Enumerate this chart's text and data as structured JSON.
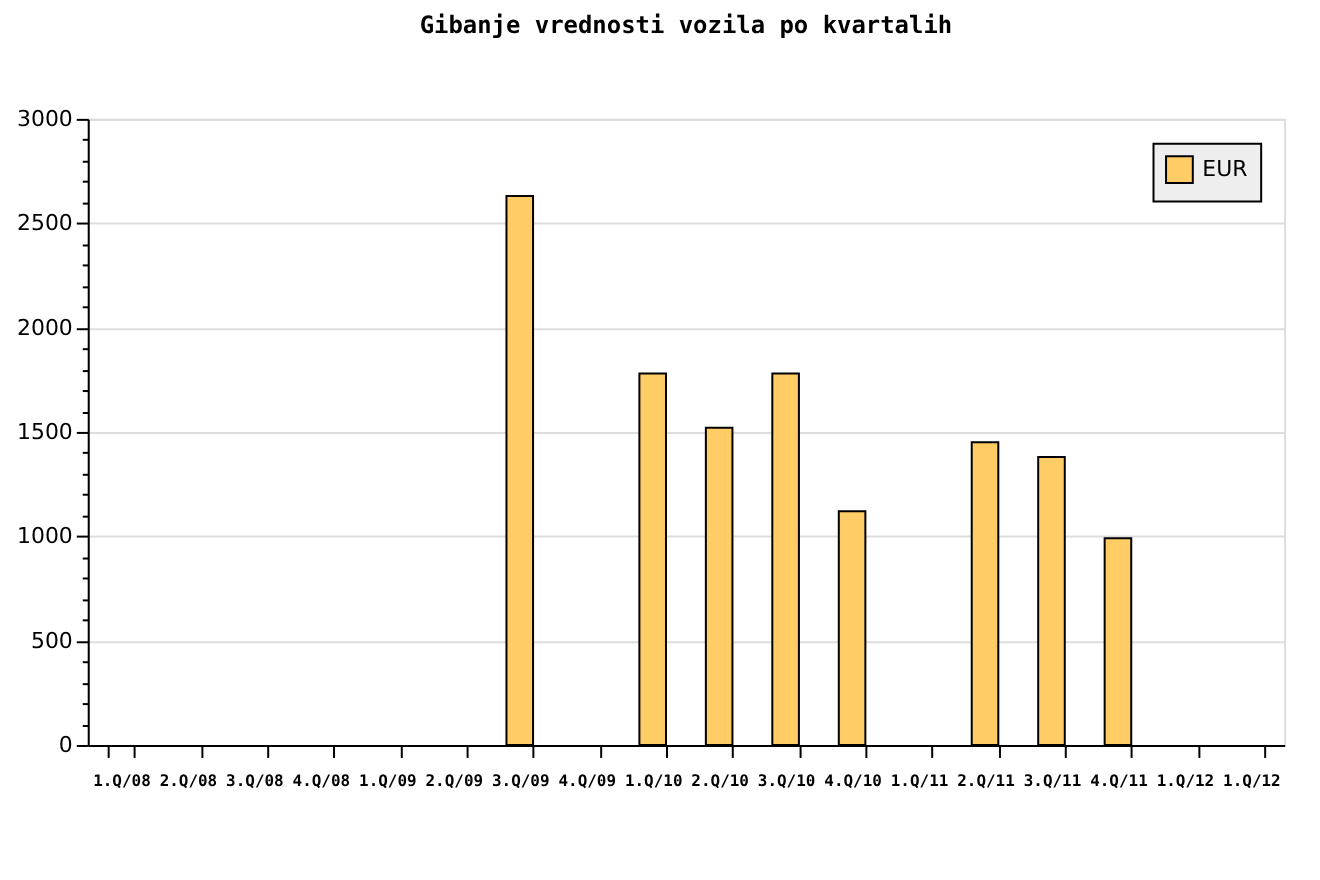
{
  "chart_data": {
    "type": "bar",
    "title": "Gibanje vrednosti vozila po kvartalih",
    "categories": [
      "1.Q/08",
      "2.Q/08",
      "3.Q/08",
      "4.Q/08",
      "1.Q/09",
      "2.Q/09",
      "3.Q/09",
      "4.Q/09",
      "1.Q/10",
      "2.Q/10",
      "3.Q/10",
      "4.Q/10",
      "1.Q/11",
      "2.Q/11",
      "3.Q/11",
      "4.Q/11",
      "1.Q/12",
      "1.Q/12"
    ],
    "series": [
      {
        "name": "EUR",
        "color": "#ffcc66",
        "values": [
          null,
          null,
          null,
          null,
          null,
          null,
          2630,
          null,
          1780,
          1520,
          1780,
          1120,
          null,
          1450,
          1380,
          990,
          null,
          null
        ]
      }
    ],
    "ylim": [
      0,
      3000
    ],
    "yticks": [
      0,
      {
        "value": 100,
        "label": null
      },
      {
        "value": 200,
        "label": null
      },
      {
        "value": 300,
        "label": null
      },
      {
        "value": 400,
        "label": null
      },
      500,
      {
        "value": 600,
        "label": null
      },
      {
        "value": 700,
        "label": null
      },
      {
        "value": 800,
        "label": null
      },
      {
        "value": 900,
        "label": null
      },
      1000,
      {
        "value": 1100,
        "label": null
      },
      {
        "value": 1200,
        "label": null
      },
      {
        "value": 1300,
        "label": null
      },
      {
        "value": 1400,
        "label": null
      },
      1500,
      {
        "value": 1600,
        "label": null
      },
      {
        "value": 1700,
        "label": null
      },
      {
        "value": 1800,
        "label": null
      },
      {
        "value": 1900,
        "label": null
      },
      2000,
      {
        "value": 2100,
        "label": null
      },
      {
        "value": 2200,
        "label": null
      },
      {
        "value": 2300,
        "label": null
      },
      {
        "value": 2400,
        "label": null
      },
      2500,
      {
        "value": 2600,
        "label": null
      },
      {
        "value": 2700,
        "label": null
      },
      {
        "value": 2800,
        "label": null
      },
      {
        "value": 2900,
        "label": null
      },
      3000
    ],
    "grid": "y",
    "legend": "top right"
  }
}
